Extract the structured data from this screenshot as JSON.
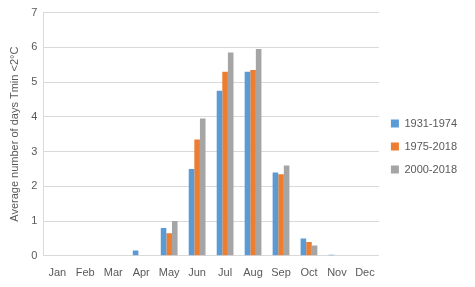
{
  "chart_data": {
    "type": "bar",
    "y_label": "Average number of days Tmin <2°C",
    "categories": [
      "Jan",
      "Feb",
      "Mar",
      "Apr",
      "May",
      "Jun",
      "Jul",
      "Aug",
      "Sep",
      "Oct",
      "Nov",
      "Dec"
    ],
    "series": [
      {
        "name": "1931-1974",
        "color": "#5b9bd5",
        "values": [
          0,
          0,
          0,
          0.15,
          0.8,
          2.5,
          4.75,
          5.3,
          2.4,
          0.5,
          0.03,
          0
        ]
      },
      {
        "name": "1975-2018",
        "color": "#ed7d31",
        "values": [
          0,
          0,
          0,
          0,
          0.65,
          3.35,
          5.3,
          5.35,
          2.35,
          0.4,
          0,
          0
        ]
      },
      {
        "name": "2000-2018",
        "color": "#a5a5a5",
        "values": [
          0,
          0,
          0,
          0,
          1.0,
          3.95,
          5.85,
          5.95,
          2.6,
          0.3,
          0,
          0
        ]
      }
    ],
    "ylim": [
      0,
      7
    ],
    "yticks": [
      0,
      1,
      2,
      3,
      4,
      5,
      6,
      7
    ],
    "grid": true,
    "legend": "right"
  }
}
